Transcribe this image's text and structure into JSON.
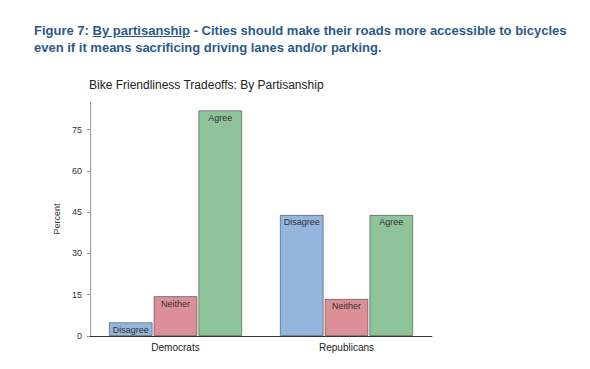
{
  "caption": {
    "label": "Figure 7:",
    "underlined": "By partisanship",
    "text": "- Cities should make their roads more accessible to bicycles even if it means sacrificing driving lanes and/or parking."
  },
  "chart_data": {
    "type": "bar",
    "title": "Bike Friendliness Tradeoffs: By Partisanship",
    "y_label": "Percent",
    "categories": [
      "Democrats",
      "Republicans"
    ],
    "series": [
      {
        "name": "Disagree",
        "color": "#93b5de",
        "values": [
          5,
          44
        ]
      },
      {
        "name": "Neither",
        "color": "#dc8f97",
        "values": [
          14.5,
          13.5
        ]
      },
      {
        "name": "Agree",
        "color": "#8fc49b",
        "values": [
          82,
          44
        ]
      }
    ],
    "ylim": [
      0,
      85
    ],
    "yticks": [
      0,
      15,
      30,
      45,
      60,
      75
    ],
    "grid": false
  }
}
